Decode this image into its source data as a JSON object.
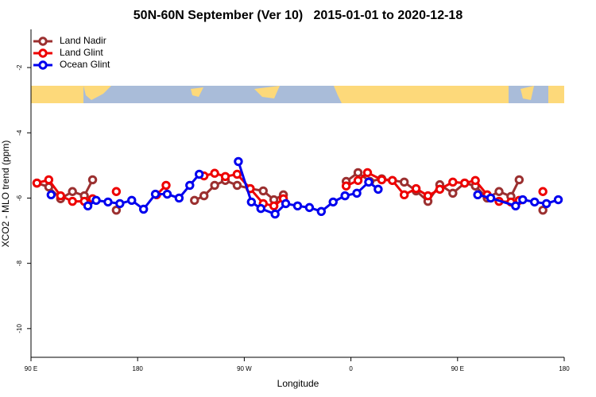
{
  "chart_data": {
    "type": "line",
    "title": "50N-60N September (Ver 10)   2015-01-01 to 2020-12-18",
    "xlabel": "Longitude",
    "ylabel": "XCO2 - MLO trend (ppm)",
    "xlim": [
      90,
      540
    ],
    "ylim": [
      -10.88,
      -0.83
    ],
    "xticks": [
      {
        "value": 90,
        "label": "90 E"
      },
      {
        "value": 180,
        "label": "180"
      },
      {
        "value": 270,
        "label": "90 W"
      },
      {
        "value": 360,
        "label": "0"
      },
      {
        "value": 450,
        "label": "90 E"
      },
      {
        "value": 540,
        "label": "180"
      }
    ],
    "yticks": [
      -10,
      -8,
      -6,
      -4,
      -2
    ],
    "legend": "top-left",
    "series": [
      {
        "name": "Land Nadir",
        "color": "#9b3030",
        "x": [
          95,
          105,
          115,
          125,
          135,
          142,
          150,
          162,
          200,
          228,
          236,
          245,
          254,
          264,
          275,
          286,
          295,
          303,
          330,
          356,
          366,
          376,
          386,
          395,
          405,
          415,
          425,
          435,
          446,
          456,
          465,
          475,
          485,
          495,
          502,
          512,
          522
        ],
        "values": [
          -5.54,
          -5.66,
          -6.02,
          -5.8,
          -5.93,
          -5.44,
          null,
          -6.37,
          null,
          -6.07,
          -5.93,
          -5.61,
          -5.46,
          -5.61,
          -5.71,
          -5.78,
          -6.05,
          -5.9,
          null,
          -5.49,
          -5.22,
          -5.49,
          -5.41,
          -5.46,
          -5.51,
          -5.78,
          -6.1,
          -5.59,
          -5.85,
          -5.54,
          -5.63,
          -6.0,
          -5.8,
          -5.95,
          -5.44,
          null,
          -6.37
        ]
      },
      {
        "name": "Land Glint",
        "color": "#ee0000",
        "x": [
          95,
          105,
          115,
          125,
          135,
          142,
          150,
          162,
          180,
          196,
          204,
          220,
          236,
          245,
          254,
          264,
          275,
          286,
          295,
          303,
          330,
          356,
          366,
          374,
          386,
          395,
          405,
          415,
          425,
          435,
          446,
          456,
          465,
          475,
          485,
          495,
          502,
          512,
          522
        ],
        "values": [
          -5.54,
          -5.44,
          -5.93,
          -6.1,
          -6.1,
          -6.02,
          null,
          -5.8,
          null,
          -5.9,
          -5.61,
          null,
          -5.32,
          -5.24,
          -5.34,
          -5.27,
          -5.71,
          -6.17,
          -6.24,
          -6.02,
          null,
          -5.63,
          -5.46,
          -5.22,
          -5.44,
          -5.46,
          -5.9,
          -5.71,
          -5.93,
          -5.73,
          -5.51,
          -5.54,
          -5.46,
          -5.9,
          -6.1,
          -6.12,
          -6.07,
          null,
          -5.8
        ]
      },
      {
        "name": "Ocean Glint",
        "color": "#0000ee",
        "x": [
          107,
          120,
          138,
          145,
          155,
          165,
          175,
          185,
          195,
          205,
          215,
          224,
          232,
          250,
          265,
          276,
          284,
          296,
          305,
          315,
          325,
          335,
          345,
          355,
          365,
          375,
          383,
          420,
          467,
          478,
          499,
          505,
          515,
          525,
          535
        ],
        "values": [
          -5.9,
          null,
          -6.24,
          -6.07,
          -6.12,
          -6.17,
          -6.07,
          -6.34,
          -5.88,
          -5.88,
          -6.0,
          -5.61,
          -5.27,
          null,
          -4.88,
          -6.12,
          -6.32,
          -6.49,
          -6.17,
          -6.24,
          -6.29,
          -6.41,
          -6.12,
          -5.93,
          -5.85,
          -5.51,
          -5.73,
          null,
          -5.9,
          -6.0,
          -6.24,
          -6.05,
          -6.12,
          -6.17,
          -6.05
        ]
      }
    ]
  }
}
